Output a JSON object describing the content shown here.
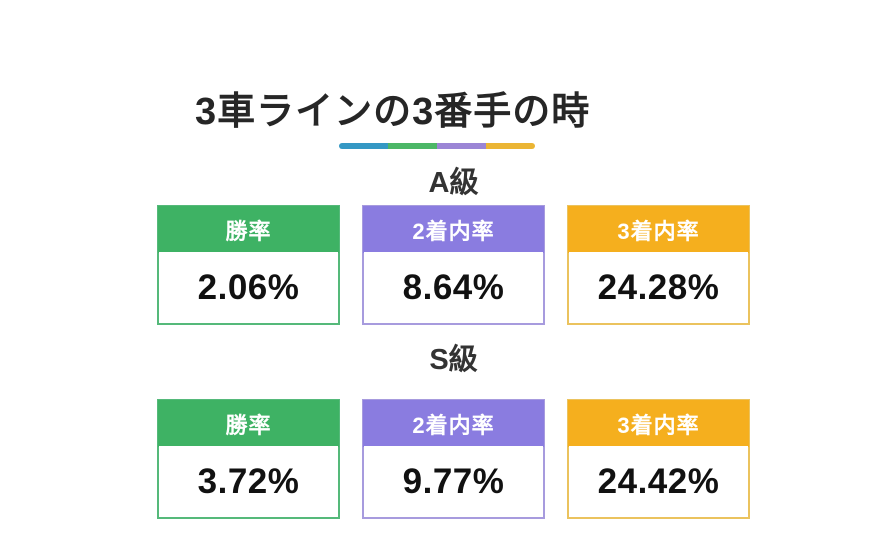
{
  "page": {
    "title": "3車ラインの3番手の時"
  },
  "divider_colors": [
    "#3498C4",
    "#4CB767",
    "#9B85D5",
    "#EBB534"
  ],
  "sections": [
    {
      "label": "A級",
      "cards": [
        {
          "header": "勝率",
          "value": "2.06%",
          "header_color": "#3EB264",
          "border_color": "#55B97A"
        },
        {
          "header": "2着内率",
          "value": "8.64%",
          "header_color": "#8A7CE0",
          "border_color": "#A79BDE"
        },
        {
          "header": "3着内率",
          "value": "24.28%",
          "header_color": "#F5AF1E",
          "border_color": "#EBC35E"
        }
      ]
    },
    {
      "label": "S級",
      "cards": [
        {
          "header": "勝率",
          "value": "3.72%",
          "header_color": "#3EB264",
          "border_color": "#55B97A"
        },
        {
          "header": "2着内率",
          "value": "9.77%",
          "header_color": "#8A7CE0",
          "border_color": "#A79BDE"
        },
        {
          "header": "3着内率",
          "value": "24.42%",
          "header_color": "#F5AF1E",
          "border_color": "#EBC35E"
        }
      ]
    }
  ]
}
